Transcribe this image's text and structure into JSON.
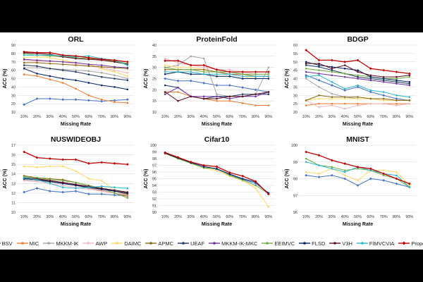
{
  "figure": {
    "x_axis_label": "Missing Rate",
    "y_axis_label": "ACC (%)"
  },
  "legend": [
    {
      "name": "BSV",
      "color": "#4472C4",
      "marker": "diamond"
    },
    {
      "name": "MIC",
      "color": "#ED7D31",
      "marker": "circle"
    },
    {
      "name": "MKKM-IK",
      "color": "#A5A5A5",
      "marker": "circle"
    },
    {
      "name": "AWP",
      "color": "#F4B6C2",
      "marker": "circle"
    },
    {
      "name": "DAIMC",
      "color": "#FFD966",
      "marker": "circle"
    },
    {
      "name": "APMC",
      "color": "#8B6914",
      "marker": "circle"
    },
    {
      "name": "UEAF",
      "color": "#1F3864",
      "marker": "circle"
    },
    {
      "name": "MKKM-IK-MKC",
      "color": "#7030A0",
      "marker": "circle"
    },
    {
      "name": "EEIMVC",
      "color": "#70AD47",
      "marker": "circle"
    },
    {
      "name": "FLSD",
      "color": "#002060",
      "marker": "circle"
    },
    {
      "name": "V3H",
      "color": "#5A0E1E",
      "marker": "circle"
    },
    {
      "name": "FIMVCVIA",
      "color": "#2AB7CA",
      "marker": "circle"
    },
    {
      "name": "Proposed",
      "color": "#C00000",
      "marker": "diamond"
    }
  ],
  "chart_data": [
    {
      "type": "line",
      "title": "ORL",
      "categories": [
        "10%",
        "20%",
        "30%",
        "40%",
        "50%",
        "60%",
        "70%",
        "80%",
        "90%"
      ],
      "xlabel": "Missing Rate",
      "ylabel": "ACC (%)",
      "ylim": [
        10,
        90
      ],
      "yticks": [
        10,
        20,
        30,
        40,
        50,
        60,
        70,
        80,
        90
      ],
      "series": [
        {
          "name": "BSV",
          "values": [
            19,
            26,
            26,
            25,
            25,
            24,
            23,
            24,
            25
          ]
        },
        {
          "name": "MIC",
          "values": [
            55,
            53,
            49,
            45,
            38,
            30,
            25,
            22,
            21
          ]
        },
        {
          "name": "MKKM-IK",
          "values": [
            63,
            63,
            62,
            61,
            60,
            59,
            57,
            54,
            50
          ]
        },
        {
          "name": "AWP",
          "values": [
            72,
            71,
            71,
            70,
            67,
            65,
            63,
            60,
            57
          ]
        },
        {
          "name": "DAIMC",
          "values": [
            75,
            76,
            75,
            72,
            69,
            67,
            62,
            58,
            53
          ]
        },
        {
          "name": "APMC",
          "values": [
            69,
            69,
            68,
            67,
            66,
            65,
            64,
            63,
            62
          ]
        },
        {
          "name": "UEAF",
          "values": [
            66,
            65,
            62,
            60,
            58,
            55,
            52,
            50,
            48
          ]
        },
        {
          "name": "MKKM-IK-MKC",
          "values": [
            73,
            72,
            71,
            70,
            69,
            67,
            66,
            64,
            63
          ]
        },
        {
          "name": "EEIMVC",
          "values": [
            80,
            78,
            77,
            76,
            75,
            74,
            73,
            71,
            68
          ]
        },
        {
          "name": "FLSD",
          "values": [
            62,
            56,
            53,
            50,
            48,
            45,
            42,
            40,
            37
          ]
        },
        {
          "name": "V3H",
          "values": [
            81,
            80,
            79,
            76,
            74,
            73,
            72,
            70,
            67
          ]
        },
        {
          "name": "FIMVCVIA",
          "values": [
            78,
            78,
            78,
            77,
            76,
            77,
            74,
            72,
            66
          ]
        },
        {
          "name": "Proposed",
          "values": [
            82,
            81,
            81,
            78,
            77,
            75,
            73,
            72,
            70
          ]
        }
      ]
    },
    {
      "type": "line",
      "title": "ProteinFold",
      "categories": [
        "10%",
        "20%",
        "30%",
        "40%",
        "50%",
        "60%",
        "70%",
        "80%",
        "90%"
      ],
      "xlabel": "Missing Rate",
      "ylabel": "ACC (%)",
      "ylim": [
        10,
        40
      ],
      "yticks": [
        10,
        15,
        20,
        25,
        30,
        35,
        40
      ],
      "series": [
        {
          "name": "BSV",
          "values": [
            25,
            24,
            24,
            23,
            22,
            22,
            21,
            20,
            19
          ]
        },
        {
          "name": "MIC",
          "values": [
            19,
            19,
            17,
            16,
            15,
            15,
            14,
            13,
            13
          ]
        },
        {
          "name": "MKKM-IK",
          "values": [
            30,
            31,
            35,
            34,
            18,
            17,
            17,
            18,
            30
          ]
        },
        {
          "name": "AWP",
          "values": [
            34,
            32,
            31,
            30,
            29,
            29,
            28,
            27,
            27
          ]
        },
        {
          "name": "DAIMC",
          "values": [
            31,
            30,
            30,
            29,
            28,
            27,
            26,
            25,
            25
          ]
        },
        {
          "name": "APMC",
          "values": [
            29,
            29,
            29,
            29,
            28,
            27,
            27,
            26,
            26
          ]
        },
        {
          "name": "UEAF",
          "values": [
            22,
            21,
            17,
            16,
            17,
            17,
            18,
            18,
            18
          ]
        },
        {
          "name": "MKKM-IK-MKC",
          "values": [
            18,
            21,
            17,
            17,
            17,
            16,
            17,
            17,
            19
          ]
        },
        {
          "name": "EEIMVC",
          "values": [
            30,
            29,
            29,
            28,
            28,
            28,
            27,
            27,
            27
          ]
        },
        {
          "name": "FLSD",
          "values": [
            27,
            28,
            27,
            27,
            26,
            26,
            25,
            25,
            25
          ]
        },
        {
          "name": "V3H",
          "values": [
            19,
            15,
            17,
            16,
            16,
            17,
            17,
            18,
            19
          ]
        },
        {
          "name": "FIMVCVIA",
          "values": [
            28,
            28,
            28,
            27,
            27,
            27,
            26,
            26,
            26
          ]
        },
        {
          "name": "Proposed",
          "values": [
            33,
            33,
            31,
            31,
            29,
            28,
            28,
            28,
            28
          ]
        }
      ]
    },
    {
      "type": "line",
      "title": "BDGP",
      "categories": [
        "10%",
        "20%",
        "30%",
        "40%",
        "50%",
        "60%",
        "70%",
        "80%",
        "90%"
      ],
      "xlabel": "Missing Rate",
      "ylabel": "ACC (%)",
      "ylim": [
        20,
        60
      ],
      "yticks": [
        20,
        25,
        30,
        35,
        40,
        45,
        50,
        55,
        60
      ],
      "series": [
        {
          "name": "BSV",
          "values": [
            42,
            39,
            36,
            33,
            35,
            32,
            30,
            28,
            27
          ]
        },
        {
          "name": "MIC",
          "values": [
            24,
            25,
            25,
            25,
            25,
            25,
            25,
            25,
            25
          ]
        },
        {
          "name": "MKKM-IK",
          "values": [
            40,
            35,
            31,
            29,
            28,
            28,
            27,
            27,
            27
          ]
        },
        {
          "name": "AWP",
          "values": [
            27,
            23,
            24,
            22,
            24,
            25,
            25,
            24,
            25
          ]
        },
        {
          "name": "DAIMC",
          "values": [
            27,
            28,
            28,
            28,
            28,
            28,
            27,
            27,
            27
          ]
        },
        {
          "name": "APMC",
          "values": [
            27,
            30,
            29,
            29,
            29,
            28,
            28,
            27,
            27
          ]
        },
        {
          "name": "UEAF",
          "values": [
            48,
            47,
            45,
            43,
            41,
            40,
            39,
            38,
            37
          ]
        },
        {
          "name": "MKKM-IK-MKC",
          "values": [
            44,
            43,
            42,
            41,
            40,
            39,
            38,
            37,
            36
          ]
        },
        {
          "name": "EEIMVC",
          "values": [
            46,
            45,
            44,
            43,
            42,
            41,
            40,
            40,
            41
          ]
        },
        {
          "name": "FLSD",
          "values": [
            50,
            48,
            47,
            46,
            45,
            41,
            40,
            39,
            38
          ]
        },
        {
          "name": "V3H",
          "values": [
            49,
            49,
            46,
            48,
            44,
            42,
            41,
            41,
            42
          ]
        },
        {
          "name": "FIMVCVIA",
          "values": [
            41,
            42,
            38,
            34,
            36,
            33,
            32,
            30,
            29
          ]
        },
        {
          "name": "Proposed",
          "values": [
            57,
            51,
            51,
            50,
            51,
            46,
            45,
            44,
            43
          ]
        }
      ]
    },
    {
      "type": "line",
      "title": "NUSWIDEOBJ",
      "categories": [
        "10%",
        "20%",
        "30%",
        "40%",
        "50%",
        "60%",
        "70%",
        "80%",
        "90%"
      ],
      "xlabel": "Missing Rate",
      "ylabel": "ACC (%)",
      "ylim": [
        10,
        17
      ],
      "yticks": [
        10,
        11,
        12,
        13,
        14,
        15,
        16,
        17
      ],
      "series": [
        {
          "name": "BSV",
          "values": [
            12.1,
            12.5,
            12.2,
            12.1,
            12.2,
            11.9,
            11.9,
            11.8,
            11.7
          ]
        },
        {
          "name": "MIC",
          "values": [
            13.5,
            13.4,
            13.3,
            13.1,
            12.9,
            12.6,
            12.2,
            12.0,
            11.7
          ]
        },
        {
          "name": "MKKM-IK",
          "values": [
            13.4,
            13.3,
            13.2,
            13.0,
            12.8,
            12.5,
            12.3,
            12.0,
            11.8
          ]
        },
        {
          "name": "AWP",
          "values": [
            13.3,
            13.2,
            13.0,
            12.8,
            12.6,
            12.4,
            12.2,
            12.0,
            11.9
          ]
        },
        {
          "name": "DAIMC",
          "values": [
            14.8,
            14.7,
            14.8,
            14.8,
            14.3,
            13.5,
            13.3,
            12.3,
            12.0
          ]
        },
        {
          "name": "APMC",
          "values": [
            13.8,
            13.6,
            13.5,
            13.4,
            13.1,
            12.8,
            12.5,
            12.2,
            11.9
          ]
        },
        {
          "name": "UEAF",
          "values": [
            13.5,
            13.4,
            13.2,
            13.0,
            12.8,
            12.6,
            12.4,
            12.2,
            12.0
          ]
        },
        {
          "name": "MKKM-IK-MKC",
          "values": [
            13.6,
            13.5,
            13.3,
            13.1,
            12.9,
            12.7,
            12.5,
            12.2,
            12.0
          ]
        },
        {
          "name": "EEIMVC",
          "values": [
            13.7,
            13.6,
            13.4,
            13.3,
            13.1,
            12.8,
            12.5,
            12.0,
            11.5
          ]
        },
        {
          "name": "FLSD",
          "values": [
            13.5,
            13.4,
            13.2,
            13.0,
            12.8,
            12.6,
            12.4,
            12.2,
            12.0
          ]
        },
        {
          "name": "V3H",
          "values": [
            13.6,
            13.5,
            13.3,
            13.1,
            12.9,
            12.7,
            12.5,
            12.3,
            12.1
          ]
        },
        {
          "name": "FIMVCVIA",
          "values": [
            13.6,
            13.4,
            13.0,
            12.6,
            12.5,
            12.6,
            12.7,
            12.6,
            12.5
          ]
        },
        {
          "name": "Proposed",
          "values": [
            16.3,
            15.7,
            15.6,
            15.5,
            15.5,
            15.1,
            15.2,
            15.1,
            15.0
          ]
        }
      ]
    },
    {
      "type": "line",
      "title": "Cifar10",
      "categories": [
        "10%",
        "20%",
        "30%",
        "40%",
        "50%",
        "60%",
        "70%",
        "80%",
        "90%"
      ],
      "xlabel": "Missing Rate",
      "ylabel": "ACC (%)",
      "ylim": [
        90,
        100
      ],
      "yticks": [
        90,
        91,
        92,
        93,
        94,
        95,
        96,
        97,
        98,
        99,
        100
      ],
      "series": [
        {
          "name": "BSV",
          "values": [
            98.8,
            98.1,
            97.4,
            96.8,
            96.4,
            95.6,
            94.9,
            94.3,
            92.9
          ]
        },
        {
          "name": "DAIMC",
          "values": [
            98.7,
            98.0,
            97.3,
            96.6,
            96.2,
            95.4,
            94.7,
            93.6,
            90.8
          ]
        },
        {
          "name": "EEIMVC",
          "values": [
            98.8,
            98.0,
            97.3,
            96.6,
            96.5,
            95.5,
            94.8,
            94.0,
            92.8
          ]
        },
        {
          "name": "FLSD",
          "values": [
            98.8,
            98.1,
            97.4,
            96.8,
            96.5,
            95.7,
            95.0,
            94.5,
            92.8
          ]
        },
        {
          "name": "Proposed",
          "values": [
            98.9,
            98.2,
            97.5,
            97.0,
            96.8,
            95.9,
            95.4,
            94.6,
            92.7
          ]
        }
      ]
    },
    {
      "type": "line",
      "title": "MNIST",
      "categories": [
        "10%",
        "20%",
        "30%",
        "40%",
        "50%",
        "60%",
        "70%",
        "80%",
        "90%"
      ],
      "xlabel": "Missing Rate",
      "ylabel": "ACC (%)",
      "ylim": [
        96,
        100
      ],
      "yticks": [
        96,
        97,
        98,
        99,
        100
      ],
      "series": [
        {
          "name": "BSV",
          "values": [
            98.2,
            98.1,
            98.2,
            98.0,
            97.6,
            98.0,
            97.9,
            97.7,
            97.5
          ]
        },
        {
          "name": "DAIMC",
          "values": [
            98.4,
            98.3,
            98.6,
            98.2,
            97.9,
            98.5,
            98.5,
            98.4,
            97.6
          ]
        },
        {
          "name": "EEIMVC",
          "values": [
            99.2,
            98.8,
            98.7,
            98.5,
            98.6,
            98.5,
            98.2,
            98.0,
            97.5
          ]
        },
        {
          "name": "FIMVCVIA",
          "values": [
            99.0,
            98.8,
            98.6,
            98.4,
            98.7,
            98.5,
            98.3,
            98.2,
            97.5
          ]
        },
        {
          "name": "Proposed",
          "values": [
            99.6,
            99.4,
            99.1,
            98.9,
            98.7,
            98.6,
            98.3,
            98.0,
            97.7
          ]
        }
      ]
    }
  ]
}
